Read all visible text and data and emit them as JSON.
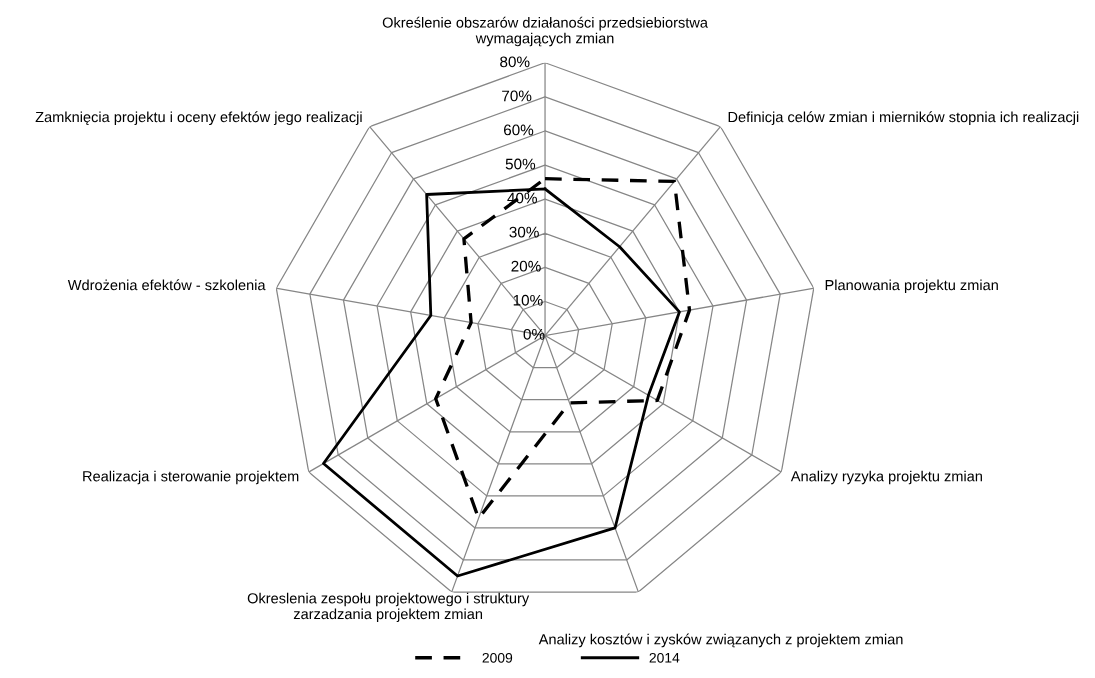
{
  "chart_data": {
    "type": "radar",
    "categories": [
      "Określenie obszarów działaności przedsiebiorstwa\nwymagających zmian",
      "Definicja celów zmian i mierników stopnia ich realizacji",
      "Planowania projektu zmian",
      "Analizy ryzyka projektu zmian",
      "Analizy kosztów i zysków związanych z projektem zmian",
      "Okreslenia zespołu projektowego i struktury\nzarzadzania projektem zmian",
      "Realizacja i sterowanie projektem",
      "Wdrożenia efektów - szkolenia",
      "Zamknięcia projektu i oceny efektów jego realizacji"
    ],
    "series": [
      {
        "name": "2009",
        "color": "#000000",
        "line_style": "dashed",
        "values": [
          46,
          59,
          43,
          38,
          21,
          57,
          37,
          22,
          37
        ]
      },
      {
        "name": "2014",
        "color": "#000000",
        "line_style": "solid",
        "values": [
          43,
          34,
          40,
          35,
          60,
          75,
          75,
          34,
          54
        ]
      }
    ],
    "ylim": [
      0,
      80
    ],
    "yticks": [
      {
        "value": 0,
        "label": "0%"
      },
      {
        "value": 10,
        "label": "10%"
      },
      {
        "value": 20,
        "label": "20%"
      },
      {
        "value": 30,
        "label": "30%"
      },
      {
        "value": 40,
        "label": "40%"
      },
      {
        "value": 50,
        "label": "50%"
      },
      {
        "value": 60,
        "label": "60%"
      },
      {
        "value": 70,
        "label": "70%"
      },
      {
        "value": 80,
        "label": "80%"
      }
    ],
    "grid": true,
    "legend": "bottom",
    "marker": "none"
  }
}
